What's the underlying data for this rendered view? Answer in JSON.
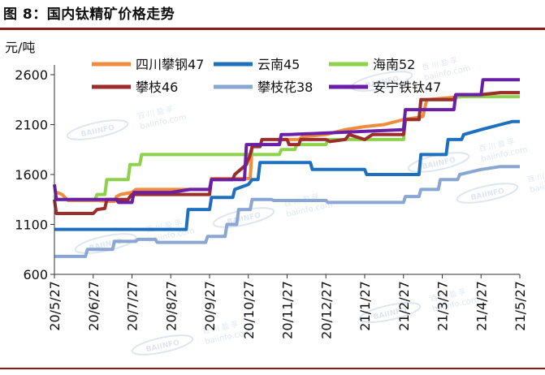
{
  "figure": {
    "title": "图 8：国内钛精矿价格走势"
  },
  "chart_data": {
    "type": "line",
    "title": "",
    "ylabel": "元/吨",
    "xlabel": "",
    "ylim": [
      600,
      2600
    ],
    "yticks": [
      600,
      1100,
      1600,
      2100,
      2600
    ],
    "xticks": [
      "20/5/27",
      "20/6/27",
      "20/7/27",
      "20/8/27",
      "20/9/27",
      "20/10/27",
      "20/11/27",
      "20/12/27",
      "21/1/27",
      "21/2/27",
      "21/3/27",
      "21/4/27",
      "21/5/27"
    ],
    "grid": false,
    "legend_position": "top",
    "x_unit": "months since 20/5/27",
    "series": [
      {
        "name": "四川攀钢47",
        "color": "#f08c3c",
        "points": [
          [
            0,
            1430
          ],
          [
            0.2,
            1400
          ],
          [
            0.35,
            1340
          ],
          [
            1.05,
            1340
          ],
          [
            1.55,
            1330
          ],
          [
            1.6,
            1380
          ],
          [
            1.7,
            1400
          ],
          [
            2.0,
            1420
          ],
          [
            2.1,
            1450
          ],
          [
            4.0,
            1450
          ],
          [
            4.05,
            1560
          ],
          [
            5.05,
            1560
          ],
          [
            5.1,
            1900
          ],
          [
            5.8,
            1900
          ],
          [
            5.85,
            1950
          ],
          [
            6.3,
            1950
          ],
          [
            6.4,
            1980
          ],
          [
            7.0,
            2000
          ],
          [
            7.5,
            2050
          ],
          [
            8.0,
            2080
          ],
          [
            8.5,
            2100
          ],
          [
            9.0,
            2150
          ],
          [
            9.5,
            2180
          ],
          [
            9.6,
            2350
          ],
          [
            10.5,
            2380
          ],
          [
            11.0,
            2400
          ],
          [
            11.5,
            2420
          ],
          [
            12.0,
            2420
          ]
        ]
      },
      {
        "name": "云南45",
        "color": "#1f6fbf",
        "points": [
          [
            0,
            1050
          ],
          [
            3.4,
            1050
          ],
          [
            3.45,
            1250
          ],
          [
            4.0,
            1250
          ],
          [
            4.05,
            1370
          ],
          [
            4.6,
            1370
          ],
          [
            4.65,
            1450
          ],
          [
            5.0,
            1500
          ],
          [
            5.1,
            1550
          ],
          [
            5.25,
            1550
          ],
          [
            5.3,
            1720
          ],
          [
            6.6,
            1720
          ],
          [
            6.65,
            1650
          ],
          [
            8.0,
            1650
          ],
          [
            8.05,
            1600
          ],
          [
            9.4,
            1600
          ],
          [
            9.45,
            1800
          ],
          [
            10.1,
            1800
          ],
          [
            10.15,
            1950
          ],
          [
            10.5,
            1950
          ],
          [
            10.55,
            2000
          ],
          [
            11.0,
            2050
          ],
          [
            11.5,
            2100
          ],
          [
            11.8,
            2130
          ],
          [
            12.0,
            2130
          ]
        ]
      },
      {
        "name": "海南52",
        "color": "#8ed24c",
        "points": [
          [
            0,
            1350
          ],
          [
            1.05,
            1350
          ],
          [
            1.1,
            1400
          ],
          [
            1.3,
            1400
          ],
          [
            1.35,
            1550
          ],
          [
            1.9,
            1550
          ],
          [
            1.95,
            1700
          ],
          [
            2.2,
            1700
          ],
          [
            2.25,
            1800
          ],
          [
            5.8,
            1800
          ],
          [
            5.85,
            1850
          ],
          [
            6.2,
            1850
          ],
          [
            6.25,
            1900
          ],
          [
            7.0,
            1900
          ],
          [
            7.05,
            1950
          ],
          [
            8.5,
            1950
          ],
          [
            9.0,
            1950
          ],
          [
            9.05,
            2150
          ],
          [
            9.4,
            2150
          ],
          [
            9.45,
            2350
          ],
          [
            10.3,
            2350
          ],
          [
            10.35,
            2380
          ],
          [
            12.0,
            2380
          ]
        ]
      },
      {
        "name": "攀枝46",
        "color": "#9b2d2d",
        "points": [
          [
            0,
            1350
          ],
          [
            0.05,
            1210
          ],
          [
            1.0,
            1210
          ],
          [
            1.1,
            1250
          ],
          [
            1.3,
            1260
          ],
          [
            1.35,
            1350
          ],
          [
            1.9,
            1350
          ],
          [
            1.95,
            1380
          ],
          [
            2.0,
            1400
          ],
          [
            4.0,
            1400
          ],
          [
            4.05,
            1550
          ],
          [
            4.6,
            1550
          ],
          [
            4.65,
            1600
          ],
          [
            4.8,
            1650
          ],
          [
            4.95,
            1700
          ],
          [
            5.05,
            1800
          ],
          [
            5.1,
            1880
          ],
          [
            5.3,
            1880
          ],
          [
            5.35,
            1950
          ],
          [
            6.0,
            1950
          ],
          [
            6.05,
            1900
          ],
          [
            6.3,
            1900
          ],
          [
            6.35,
            1950
          ],
          [
            7.0,
            1950
          ],
          [
            7.1,
            1930
          ],
          [
            7.5,
            1950
          ],
          [
            7.6,
            2000
          ],
          [
            8.0,
            1950
          ],
          [
            8.2,
            2000
          ],
          [
            9.0,
            2000
          ],
          [
            9.05,
            2150
          ],
          [
            9.4,
            2150
          ],
          [
            9.45,
            2350
          ],
          [
            10.3,
            2350
          ],
          [
            10.35,
            2400
          ],
          [
            11.0,
            2400
          ],
          [
            11.5,
            2420
          ],
          [
            12.0,
            2420
          ]
        ]
      },
      {
        "name": "攀枝花38",
        "color": "#8aa6d2",
        "points": [
          [
            0,
            780
          ],
          [
            0.8,
            780
          ],
          [
            0.85,
            850
          ],
          [
            1.5,
            850
          ],
          [
            1.55,
            930
          ],
          [
            2.1,
            930
          ],
          [
            2.15,
            950
          ],
          [
            2.6,
            950
          ],
          [
            2.65,
            920
          ],
          [
            3.9,
            920
          ],
          [
            3.95,
            980
          ],
          [
            4.4,
            980
          ],
          [
            4.45,
            1100
          ],
          [
            4.7,
            1100
          ],
          [
            4.75,
            1250
          ],
          [
            5.05,
            1250
          ],
          [
            5.1,
            1350
          ],
          [
            5.6,
            1350
          ],
          [
            5.65,
            1340
          ],
          [
            7.0,
            1340
          ],
          [
            7.05,
            1320
          ],
          [
            9.0,
            1320
          ],
          [
            9.05,
            1380
          ],
          [
            9.4,
            1380
          ],
          [
            9.45,
            1450
          ],
          [
            9.9,
            1450
          ],
          [
            9.95,
            1550
          ],
          [
            10.4,
            1550
          ],
          [
            10.45,
            1600
          ],
          [
            11.0,
            1650
          ],
          [
            11.5,
            1680
          ],
          [
            12.0,
            1680
          ]
        ]
      },
      {
        "name": "安宁铁钛47",
        "color": "#6a1fa6",
        "points": [
          [
            0,
            1500
          ],
          [
            0.05,
            1350
          ],
          [
            1.6,
            1350
          ],
          [
            1.65,
            1320
          ],
          [
            2.0,
            1320
          ],
          [
            2.05,
            1420
          ],
          [
            3.0,
            1420
          ],
          [
            3.5,
            1450
          ],
          [
            4.0,
            1450
          ],
          [
            4.05,
            1550
          ],
          [
            4.9,
            1550
          ],
          [
            4.95,
            1900
          ],
          [
            5.8,
            1900
          ],
          [
            5.85,
            2000
          ],
          [
            6.0,
            2000
          ],
          [
            6.05,
            2000
          ],
          [
            9.0,
            2050
          ],
          [
            9.05,
            2250
          ],
          [
            10.3,
            2250
          ],
          [
            10.35,
            2400
          ],
          [
            11.0,
            2400
          ],
          [
            11.05,
            2550
          ],
          [
            12.0,
            2550
          ]
        ]
      }
    ]
  },
  "watermark": {
    "brand": "BAIINFO",
    "cn": "百 川 盈 孚",
    "url": "baiinfo.com"
  }
}
